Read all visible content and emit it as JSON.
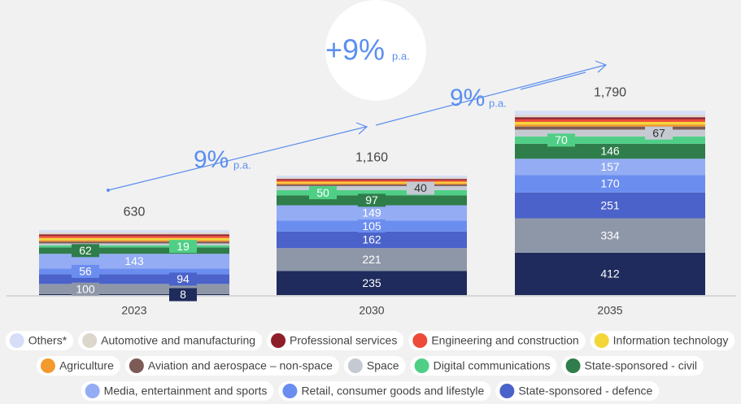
{
  "chart_data": {
    "type": "bar",
    "stacked": true,
    "categories": [
      "2023",
      "2030",
      "2035"
    ],
    "totals": [
      630,
      1160,
      1790
    ],
    "total_labels": [
      "630",
      "1,160",
      "1,790"
    ],
    "ylim": [
      0,
      1800
    ],
    "annotations": {
      "overall": "+9%",
      "overall_unit": "p.a.",
      "first": "9%",
      "first_unit": "p.a.",
      "second": "9%",
      "second_unit": "p.a."
    },
    "series": [
      {
        "color": "#1f2b5c",
        "values": [
          8,
          235,
          412
        ]
      },
      {
        "color": "#8e97a8",
        "values": [
          100,
          221,
          334
        ]
      },
      {
        "name": "State-sponsored - defence",
        "color": "#4a62c9",
        "values": [
          94,
          162,
          251
        ]
      },
      {
        "name": "Retail, consumer goods and lifestyle",
        "color": "#6b8df0",
        "values": [
          56,
          105,
          170
        ]
      },
      {
        "name": "Media, entertainment and sports",
        "color": "#93acf4",
        "values": [
          143,
          149,
          157
        ]
      },
      {
        "name": "State-sponsored - civil",
        "color": "#2e7d4a",
        "values": [
          62,
          97,
          146
        ]
      },
      {
        "name": "Digital communications",
        "color": "#4fcf86",
        "values": [
          19,
          50,
          70
        ]
      },
      {
        "name": "Space",
        "color": "#c4c9d2",
        "values": [
          20,
          40,
          67
        ],
        "value_labels": [
          null,
          "40",
          "67"
        ]
      },
      {
        "name": "Aviation and aerospace – non-space",
        "color": "#7d5a55",
        "values": [
          18,
          15,
          30
        ],
        "value_labels": [
          null,
          null,
          null
        ]
      },
      {
        "name": "Agriculture",
        "color": "#f29a2e",
        "values": [
          15,
          12,
          20
        ],
        "value_labels": [
          null,
          null,
          null
        ]
      },
      {
        "name": "Information technology",
        "color": "#f5d63a",
        "values": [
          20,
          15,
          25
        ],
        "value_labels": [
          null,
          null,
          null
        ]
      },
      {
        "name": "Engineering and construction",
        "color": "#ee4a3a",
        "values": [
          20,
          15,
          25
        ],
        "value_labels": [
          null,
          null,
          null
        ]
      },
      {
        "name": "Professional services",
        "color": "#8e1f2a",
        "values": [
          15,
          12,
          20
        ],
        "value_labels": [
          null,
          null,
          null
        ]
      },
      {
        "name": "Automotive and manufacturing",
        "color": "#ddd6cc",
        "values": [
          20,
          15,
          25
        ],
        "value_labels": [
          null,
          null,
          null
        ]
      },
      {
        "name": "Others*",
        "color": "#d6def7",
        "values": [
          20,
          17,
          38
        ],
        "value_labels": [
          null,
          null,
          null
        ]
      }
    ]
  }
}
